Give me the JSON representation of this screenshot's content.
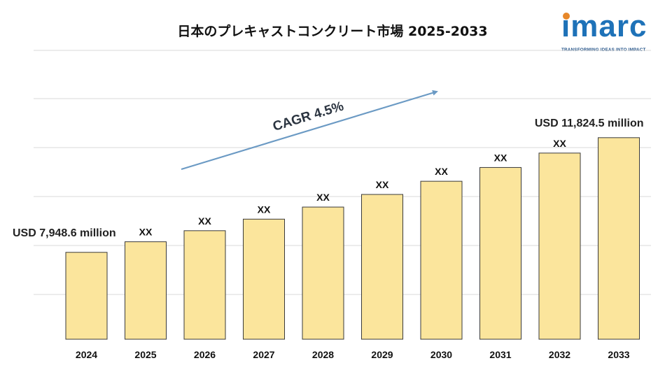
{
  "header": {
    "title": "日本のプレキャストコンクリート市場 2025-2033"
  },
  "logo": {
    "wordmark": "imarc",
    "tagline": "TRANSFORMING IDEAS INTO IMPACT",
    "colors": {
      "primary": "#1e72b8",
      "dot": "#e7872a"
    }
  },
  "chart_data": {
    "type": "bar",
    "title": "日本のプレキャストコンクリート市場 2025-2033",
    "xlabel": "",
    "ylabel": "",
    "categories": [
      "2024",
      "2025",
      "2026",
      "2027",
      "2028",
      "2029",
      "2030",
      "2031",
      "2032",
      "2033"
    ],
    "values": [
      7948.6,
      8306.3,
      8680.1,
      9070.7,
      9478.9,
      9905.5,
      10351.2,
      10817.0,
      11303.8,
      11824.5
    ],
    "data_labels": [
      "",
      "XX",
      "XX",
      "XX",
      "XX",
      "XX",
      "XX",
      "XX",
      "XX",
      ""
    ],
    "callouts": {
      "first": "USD 7,948.6 million",
      "last": "USD 11,824.5 million"
    },
    "annotation": "CAGR 4.5%",
    "grid": true,
    "legend": "none",
    "colors": {
      "bar": "#fbe59c",
      "bar_outline": "#3a3a3a",
      "arrow": "#6b9ac4"
    }
  }
}
